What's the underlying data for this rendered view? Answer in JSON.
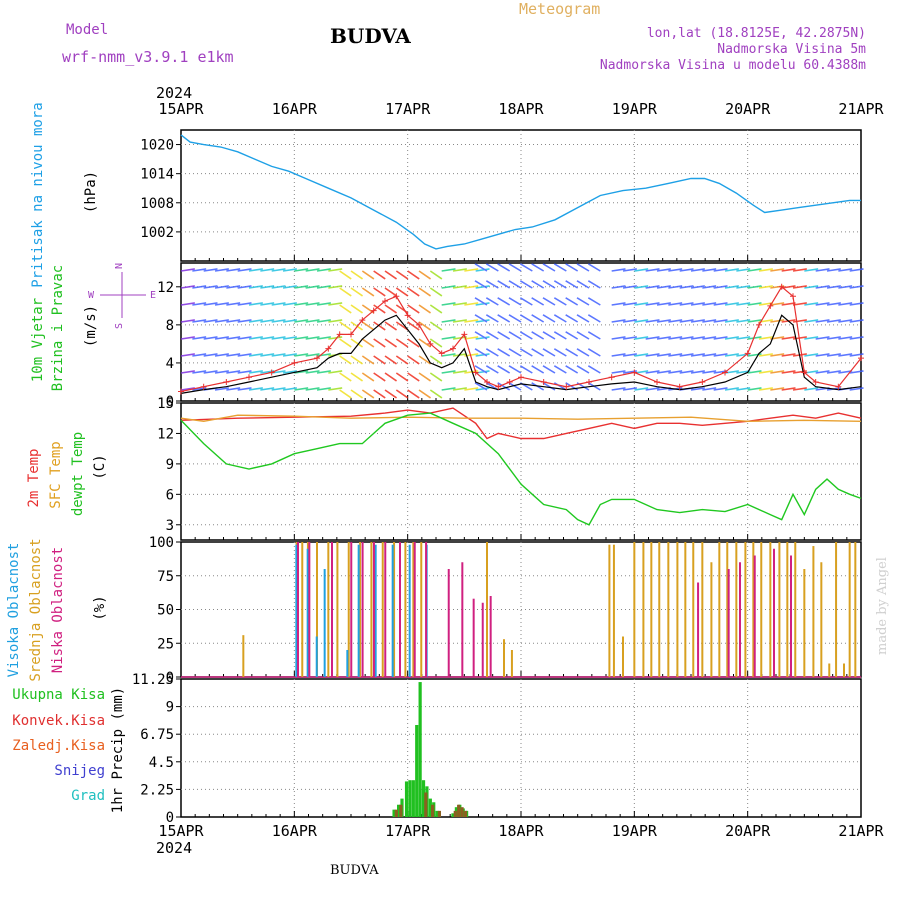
{
  "header": {
    "model_label": "Model",
    "model_name": "wrf-nmm_v3.9.1 e1km",
    "city": "BUDVA",
    "product": "Meteogram",
    "lonlat": "lon,lat (18.8125E, 42.2875N)",
    "elevation": "Nadmorska Visina 5m",
    "model_elevation": "Nadmorska Visina u modelu 60.4388m",
    "footer_city": "BUDVA",
    "watermark": "made by Angel"
  },
  "time_axis": {
    "year": "2024",
    "labels": [
      "15APR",
      "16APR",
      "17APR",
      "18APR",
      "19APR",
      "20APR",
      "21APR"
    ]
  },
  "colors": {
    "pressure": "#1ea0e6",
    "wind_speed": "#000000",
    "wind_gust": "#e83030",
    "temp_2m": "#e83030",
    "temp_sfc": "#e8a030",
    "dewpt": "#20c820",
    "cloud_high": "#20a0e0",
    "cloud_mid": "#d8a020",
    "cloud_low": "#d02080",
    "precip_total": "#20c020",
    "precip_conv": "#e03030",
    "precip_frozen": "#e86020",
    "snow": "#4040d0",
    "graupel": "#20c0c0",
    "purple_text": "#a040c0",
    "orange_text": "#e0b060"
  },
  "chart_data": [
    {
      "type": "line",
      "panel": "pressure",
      "ylabel_lines": [
        "Pritisak na nivou mora"
      ],
      "unit": "(hPa)",
      "y_ticks": [
        1002,
        1008,
        1014,
        1020
      ],
      "ylim": [
        996,
        1023
      ],
      "grid": true,
      "series": [
        {
          "x_days": [
            0,
            0.08,
            0.2,
            0.35,
            0.5,
            0.65,
            0.8,
            0.95,
            1.1,
            1.3,
            1.5,
            1.7,
            1.9,
            2.05,
            2.15,
            2.25,
            2.35,
            2.5,
            2.65,
            2.8,
            2.95,
            3.1,
            3.3,
            3.5,
            3.7,
            3.9,
            4.1,
            4.3,
            4.5,
            4.62,
            4.75,
            4.9,
            5.05,
            5.15,
            5.3,
            5.45,
            5.6,
            5.75,
            5.9,
            6.0
          ],
          "values": [
            1022,
            1020.5,
            1020,
            1019.5,
            1018.5,
            1017,
            1015.5,
            1014.5,
            1013,
            1011,
            1009,
            1006.5,
            1004,
            1001.5,
            999.5,
            998.5,
            999,
            999.5,
            1000.5,
            1001.5,
            1002.5,
            1003,
            1004.5,
            1007,
            1009.5,
            1010.5,
            1011,
            1012,
            1013,
            1013,
            1012,
            1010,
            1007.5,
            1006,
            1006.5,
            1007,
            1007.5,
            1008,
            1008.5,
            1008.5
          ]
        }
      ]
    },
    {
      "type": "line",
      "panel": "wind",
      "ylabel_lines": [
        "10m Vjetar",
        "Brzina i Pravac"
      ],
      "unit": "(m/s)",
      "compass": [
        "W",
        "E",
        "N",
        "S"
      ],
      "y_ticks": [
        0,
        4,
        8,
        12
      ],
      "ylim": [
        0,
        14.5
      ],
      "grid": true,
      "series": [
        {
          "name": "speed",
          "x_days": [
            0,
            0.2,
            0.4,
            0.6,
            0.8,
            1.0,
            1.2,
            1.3,
            1.4,
            1.5,
            1.6,
            1.7,
            1.8,
            1.9,
            2.0,
            2.1,
            2.2,
            2.3,
            2.4,
            2.5,
            2.6,
            2.7,
            2.8,
            2.9,
            3.0,
            3.2,
            3.4,
            3.6,
            3.8,
            4.0,
            4.2,
            4.4,
            4.6,
            4.8,
            5.0,
            5.1,
            5.2,
            5.3,
            5.4,
            5.5,
            5.6,
            5.8,
            6.0
          ],
          "values": [
            0.8,
            1.2,
            1.5,
            2,
            2.5,
            3,
            3.5,
            4.5,
            5,
            5,
            6.5,
            7.5,
            8.5,
            9,
            7.5,
            6,
            4,
            3.5,
            4,
            5.5,
            2,
            1.5,
            1.2,
            1.5,
            1.8,
            1.5,
            1.2,
            1.5,
            1.8,
            2,
            1.5,
            1.2,
            1.5,
            2,
            3,
            5,
            6,
            9,
            8,
            2.5,
            1.5,
            1.2,
            1.5
          ]
        },
        {
          "name": "gust",
          "x_days": [
            0,
            0.2,
            0.4,
            0.6,
            0.8,
            1.0,
            1.2,
            1.3,
            1.4,
            1.5,
            1.6,
            1.7,
            1.8,
            1.9,
            2.0,
            2.1,
            2.2,
            2.3,
            2.4,
            2.5,
            2.6,
            2.7,
            2.8,
            2.9,
            3.0,
            3.2,
            3.4,
            3.6,
            3.8,
            4.0,
            4.2,
            4.4,
            4.6,
            4.8,
            5.0,
            5.1,
            5.2,
            5.3,
            5.4,
            5.5,
            5.6,
            5.8,
            6.0
          ],
          "values": [
            1,
            1.5,
            2,
            2.5,
            3,
            4,
            4.5,
            5.5,
            7,
            7,
            8.5,
            9.5,
            10.5,
            11,
            9,
            8,
            6,
            5,
            5.5,
            7,
            3,
            2,
            1.5,
            2,
            2.5,
            2,
            1.5,
            2,
            2.5,
            3,
            2,
            1.5,
            2,
            3,
            5,
            8,
            10,
            12,
            11,
            3,
            2,
            1.5,
            4.5
          ]
        }
      ]
    },
    {
      "type": "line",
      "panel": "temperature",
      "ylabel_lines": [
        "2m Temp",
        "SFC Temp",
        "dewpt Temp"
      ],
      "unit": "(C)",
      "y_ticks": [
        3,
        6,
        9,
        12,
        15
      ],
      "ylim": [
        1.5,
        15
      ],
      "grid": true,
      "series": [
        {
          "name": "2m Temp",
          "x_days": [
            0,
            0.5,
            1.0,
            1.5,
            1.8,
            2.0,
            2.2,
            2.4,
            2.6,
            2.7,
            2.8,
            3.0,
            3.2,
            3.4,
            3.6,
            3.8,
            4.0,
            4.2,
            4.4,
            4.6,
            4.8,
            5.0,
            5.2,
            5.4,
            5.6,
            5.8,
            6.0
          ],
          "values": [
            13.3,
            13.5,
            13.6,
            13.7,
            14,
            14.3,
            14,
            14.5,
            13,
            11.5,
            12,
            11.5,
            11.5,
            12,
            12.5,
            13,
            12.5,
            13,
            13,
            12.8,
            13,
            13.2,
            13.5,
            13.8,
            13.5,
            14,
            13.5
          ]
        },
        {
          "name": "SFC Temp",
          "x_days": [
            0,
            0.2,
            0.5,
            1.0,
            1.5,
            2.0,
            2.5,
            3.0,
            3.5,
            4.0,
            4.5,
            5.0,
            5.5,
            6.0
          ],
          "values": [
            13.5,
            13.2,
            13.8,
            13.7,
            13.5,
            13.6,
            13.5,
            13.5,
            13.4,
            13.5,
            13.6,
            13.2,
            13.3,
            13.2
          ]
        },
        {
          "name": "dewpt Temp",
          "x_days": [
            0,
            0.2,
            0.4,
            0.6,
            0.8,
            1.0,
            1.2,
            1.4,
            1.6,
            1.8,
            2.0,
            2.2,
            2.4,
            2.6,
            2.8,
            3.0,
            3.1,
            3.2,
            3.4,
            3.5,
            3.6,
            3.7,
            3.8,
            4.0,
            4.2,
            4.4,
            4.6,
            4.8,
            5.0,
            5.2,
            5.3,
            5.4,
            5.5,
            5.6,
            5.7,
            5.8,
            5.9,
            6.0
          ],
          "values": [
            13.3,
            11,
            9,
            8.5,
            9,
            10,
            10.5,
            11,
            11,
            13,
            13.8,
            14,
            13,
            12,
            10,
            7,
            6,
            5,
            4.5,
            3.5,
            3,
            5,
            5.5,
            5.5,
            4.5,
            4.2,
            4.5,
            4.3,
            5,
            4,
            3.5,
            6,
            4,
            6.5,
            7.5,
            6.5,
            6,
            5.6
          ]
        }
      ]
    },
    {
      "type": "bar",
      "panel": "cloud",
      "ylabel_lines": [
        "Visoka Oblacnost",
        "Srednja Oblacnost",
        "Niska Oblacnost"
      ],
      "unit": "(%)",
      "y_ticks": [
        0,
        25,
        50,
        75,
        100
      ],
      "ylim": [
        0,
        100
      ],
      "grid": true,
      "high_cloud": [
        {
          "x": 1.0,
          "v": 98
        },
        {
          "x": 1.1,
          "v": 95
        },
        {
          "x": 1.18,
          "v": 30
        },
        {
          "x": 1.25,
          "v": 80
        },
        {
          "x": 1.45,
          "v": 20
        },
        {
          "x": 1.55,
          "v": 98
        },
        {
          "x": 1.7,
          "v": 98
        },
        {
          "x": 1.85,
          "v": 98
        },
        {
          "x": 2.0,
          "v": 98
        },
        {
          "x": 2.15,
          "v": 98
        }
      ],
      "mid_cloud": [
        {
          "x": 0.55,
          "v": 31
        },
        {
          "x": 1.02,
          "v": 100
        },
        {
          "x": 1.07,
          "v": 100
        },
        {
          "x": 1.12,
          "v": 100
        },
        {
          "x": 1.2,
          "v": 100
        },
        {
          "x": 1.3,
          "v": 100
        },
        {
          "x": 1.38,
          "v": 100
        },
        {
          "x": 1.48,
          "v": 100
        },
        {
          "x": 1.58,
          "v": 100
        },
        {
          "x": 1.68,
          "v": 100
        },
        {
          "x": 1.78,
          "v": 100
        },
        {
          "x": 1.88,
          "v": 100
        },
        {
          "x": 1.98,
          "v": 100
        },
        {
          "x": 2.05,
          "v": 100
        },
        {
          "x": 2.12,
          "v": 100
        },
        {
          "x": 2.7,
          "v": 100
        },
        {
          "x": 2.85,
          "v": 28
        },
        {
          "x": 2.92,
          "v": 20
        },
        {
          "x": 3.78,
          "v": 98
        },
        {
          "x": 3.82,
          "v": 98
        },
        {
          "x": 3.9,
          "v": 30
        },
        {
          "x": 4.0,
          "v": 100
        },
        {
          "x": 4.08,
          "v": 100
        },
        {
          "x": 4.15,
          "v": 100
        },
        {
          "x": 4.22,
          "v": 100
        },
        {
          "x": 4.3,
          "v": 100
        },
        {
          "x": 4.38,
          "v": 100
        },
        {
          "x": 4.45,
          "v": 100
        },
        {
          "x": 4.52,
          "v": 100
        },
        {
          "x": 4.6,
          "v": 100
        },
        {
          "x": 4.68,
          "v": 85
        },
        {
          "x": 4.75,
          "v": 100
        },
        {
          "x": 4.82,
          "v": 100
        },
        {
          "x": 4.9,
          "v": 100
        },
        {
          "x": 4.98,
          "v": 100
        },
        {
          "x": 5.05,
          "v": 100
        },
        {
          "x": 5.12,
          "v": 100
        },
        {
          "x": 5.2,
          "v": 100
        },
        {
          "x": 5.28,
          "v": 100
        },
        {
          "x": 5.35,
          "v": 100
        },
        {
          "x": 5.42,
          "v": 100
        },
        {
          "x": 5.5,
          "v": 80
        },
        {
          "x": 5.58,
          "v": 97
        },
        {
          "x": 5.65,
          "v": 85
        },
        {
          "x": 5.72,
          "v": 10
        },
        {
          "x": 5.78,
          "v": 100
        },
        {
          "x": 5.85,
          "v": 10
        },
        {
          "x": 5.9,
          "v": 100
        },
        {
          "x": 5.95,
          "v": 100
        }
      ],
      "low_cloud": [
        {
          "x": 1.05,
          "v": 100
        },
        {
          "x": 1.15,
          "v": 100
        },
        {
          "x": 1.35,
          "v": 100
        },
        {
          "x": 1.52,
          "v": 100
        },
        {
          "x": 1.62,
          "v": 100
        },
        {
          "x": 1.72,
          "v": 100
        },
        {
          "x": 1.82,
          "v": 100
        },
        {
          "x": 1.95,
          "v": 100
        },
        {
          "x": 2.08,
          "v": 100
        },
        {
          "x": 2.18,
          "v": 100
        },
        {
          "x": 2.38,
          "v": 80
        },
        {
          "x": 2.5,
          "v": 85
        },
        {
          "x": 2.6,
          "v": 58
        },
        {
          "x": 2.68,
          "v": 55
        },
        {
          "x": 2.75,
          "v": 60
        },
        {
          "x": 4.58,
          "v": 70
        },
        {
          "x": 4.85,
          "v": 80
        },
        {
          "x": 4.95,
          "v": 85
        },
        {
          "x": 5.08,
          "v": 90
        },
        {
          "x": 5.25,
          "v": 95
        },
        {
          "x": 5.4,
          "v": 90
        }
      ]
    },
    {
      "type": "bar",
      "panel": "precip",
      "ylabel_lines": [
        "1hr Precip (mm)"
      ],
      "legend": [
        "Ukupna Kisa",
        "Konvek.Kisa",
        "Zaledj.Kisa",
        "Snijeg",
        "Grad"
      ],
      "y_ticks": [
        0,
        2.25,
        4.5,
        6.75,
        9,
        11.25
      ],
      "ylim": [
        0,
        11.25
      ],
      "grid": true,
      "total": [
        {
          "x": 1.88,
          "v": 0.6
        },
        {
          "x": 1.92,
          "v": 1.0
        },
        {
          "x": 1.95,
          "v": 1.5
        },
        {
          "x": 1.99,
          "v": 2.9
        },
        {
          "x": 2.02,
          "v": 3.0
        },
        {
          "x": 2.05,
          "v": 3.0
        },
        {
          "x": 2.08,
          "v": 7.5
        },
        {
          "x": 2.11,
          "v": 11.0
        },
        {
          "x": 2.14,
          "v": 3.0
        },
        {
          "x": 2.17,
          "v": 2.5
        },
        {
          "x": 2.2,
          "v": 1.5
        },
        {
          "x": 2.23,
          "v": 1.2
        },
        {
          "x": 2.26,
          "v": 0.5
        },
        {
          "x": 2.4,
          "v": 0.3
        },
        {
          "x": 2.43,
          "v": 0.8
        },
        {
          "x": 2.46,
          "v": 1.0
        },
        {
          "x": 2.49,
          "v": 0.7
        },
        {
          "x": 2.52,
          "v": 0.5
        }
      ],
      "convective": [
        {
          "x": 1.9,
          "v": 0.6
        },
        {
          "x": 1.94,
          "v": 1.0
        },
        {
          "x": 2.16,
          "v": 2.0
        },
        {
          "x": 2.22,
          "v": 1.0
        },
        {
          "x": 2.28,
          "v": 0.5
        },
        {
          "x": 2.42,
          "v": 0.5
        },
        {
          "x": 2.45,
          "v": 1.0
        },
        {
          "x": 2.48,
          "v": 0.8
        },
        {
          "x": 2.51,
          "v": 0.5
        }
      ]
    }
  ]
}
